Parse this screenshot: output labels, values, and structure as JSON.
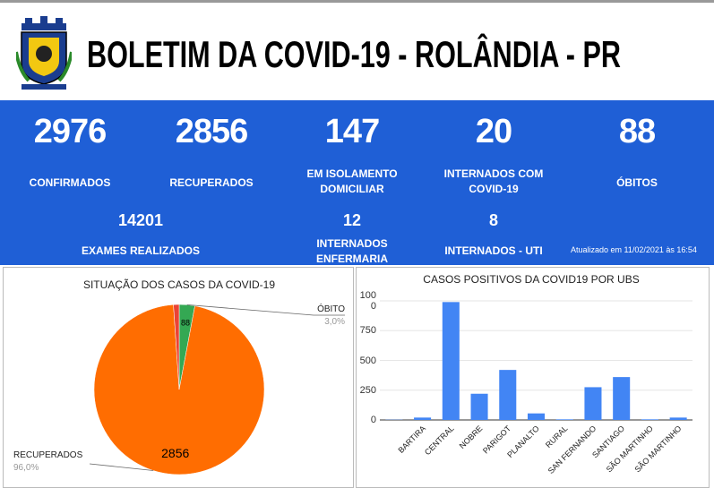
{
  "header": {
    "title": "BOLETIM DA COVID-19 - ROLÂNDIA - PR"
  },
  "stats": [
    {
      "value": 2976,
      "label": "CONFIRMADOS"
    },
    {
      "value": 2856,
      "label": "RECUPERADOS"
    },
    {
      "value": 147,
      "label": "EM ISOLAMENTO DOMICILIAR"
    },
    {
      "value": 20,
      "label": "INTERNADOS COM COVID-19"
    },
    {
      "value": 88,
      "label": "ÓBITOS"
    }
  ],
  "stats_secondary": [
    {
      "value": 14201,
      "label": "EXAMES REALIZADOS"
    },
    {
      "value": 12,
      "label": "INTERNADOS ENFERMARIA"
    },
    {
      "value": 8,
      "label": "INTERNADOS - UTI"
    }
  ],
  "updated": "Atualizado em 11/02/2021 às 16:54",
  "chart_data": [
    {
      "type": "pie",
      "title": "SITUAÇÃO DOS CASOS DA COVID-19",
      "categories": [
        "ÓBITO",
        "RECUPERADOS",
        null
      ],
      "values": [
        88,
        2856,
        32
      ],
      "value_labels": [
        "88",
        "2856",
        null
      ],
      "percent_labels": [
        "3,0%",
        "96,0%",
        null
      ],
      "colors": [
        "#34a853",
        "#ff6d01",
        "#ea4335"
      ]
    },
    {
      "type": "bar",
      "title": "CASOS POSITIVOS DA COVID19 POR UBS",
      "categories": [
        null,
        "BARTIRA",
        "CENTRAL",
        "NOBRE",
        "PARIGOT",
        "PLANALTO",
        "RURAL",
        "SAN FERNANDO",
        "SANTIAGO",
        "SÃO MARTINHO",
        "SÃO MARTINHO"
      ],
      "values": [
        2,
        20,
        990,
        220,
        420,
        55,
        5,
        275,
        360,
        5,
        20
      ],
      "color": "#4285f4",
      "ylim": [
        0,
        1000
      ],
      "yticks": [
        0,
        250,
        500,
        750,
        1000
      ],
      "grid": true
    }
  ]
}
